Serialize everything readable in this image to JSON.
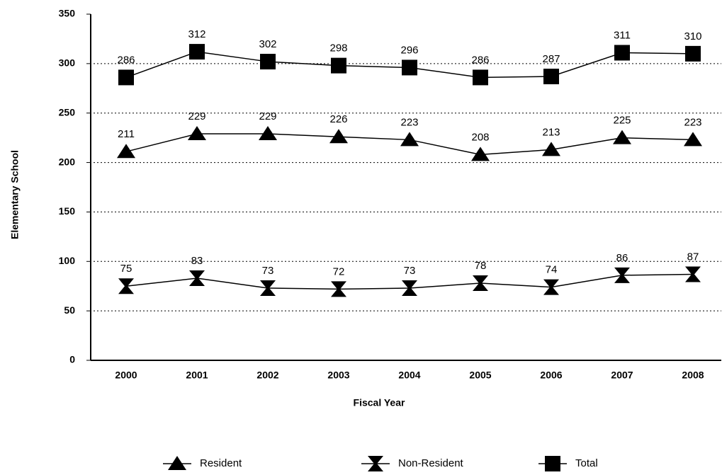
{
  "chart_data": {
    "type": "line",
    "x_label": "Fiscal Year",
    "y_label": "Elementary School",
    "categories": [
      "2000",
      "2001",
      "2002",
      "2003",
      "2004",
      "2005",
      "2006",
      "2007",
      "2008"
    ],
    "series": [
      {
        "name": "Resident",
        "color": "#000000",
        "marker": "triangle",
        "values": [
          211,
          229,
          229,
          226,
          223,
          208,
          213,
          225,
          223
        ]
      },
      {
        "name": "Non-Resident",
        "color": "#000000",
        "marker": "hourglass",
        "values": [
          75,
          83,
          73,
          72,
          73,
          78,
          74,
          86,
          87
        ]
      },
      {
        "name": "Total",
        "color": "#000000",
        "marker": "square",
        "values": [
          286,
          312,
          302,
          298,
          296,
          286,
          287,
          311,
          310
        ]
      }
    ],
    "ylim": [
      0,
      350
    ],
    "yticks": [
      0,
      50,
      100,
      150,
      200,
      250,
      300,
      350
    ],
    "grid": true,
    "legend": "bottom"
  }
}
